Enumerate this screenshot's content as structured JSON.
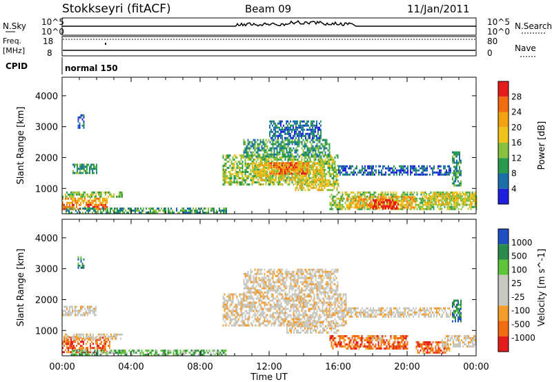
{
  "header": {
    "station": "Stokkseyri (fitACF)",
    "beam": "Beam 09",
    "date": "11/Jan/2011"
  },
  "labels": {
    "nsky": "N.Sky",
    "nsearch": "N.Search",
    "freq_line1": "Freq.",
    "freq_line2": "[MHz]",
    "nave": "Nave",
    "cpid": "CPID",
    "cpid_value": "normal 150",
    "nsky_top": "10^5",
    "nsky_bottom": "10^0",
    "nsearch_top": "10^5",
    "nsearch_bottom": "10^0",
    "freq_top": "18",
    "freq_bottom": "8",
    "nave_top": "80",
    "nave_bottom": "0"
  },
  "colors": {
    "power": [
      "#1f1fe0",
      "#1b6fa8",
      "#2a9a4e",
      "#88c040",
      "#f0c21c",
      "#f3a20f",
      "#f26b13",
      "#e51c1c"
    ],
    "velocity": [
      "#e51c1c",
      "#f26b13",
      "#f59d2a",
      "#c8c8c0",
      "#c8c8c0",
      "#5ec43a",
      "#2a8a4e",
      "#1f4fc0"
    ]
  },
  "chart_data": [
    {
      "type": "heatmap",
      "title": "",
      "xlabel": "",
      "ylabel": "Slant Range [km]",
      "xlim": [
        0,
        24
      ],
      "ylim": [
        180,
        4600
      ],
      "x_ticks": [
        "00:00",
        "04:00",
        "08:00",
        "12:00",
        "16:00",
        "20:00",
        "00:00"
      ],
      "y_ticks": [
        1000,
        2000,
        3000,
        4000
      ],
      "colorbar": {
        "label": "Power [dB]",
        "ticks": [
          "4",
          "8",
          "12",
          "16",
          "20",
          "24",
          "28"
        ]
      },
      "regions": [
        {
          "t": [
            0.0,
            2.6
          ],
          "r": [
            300,
            500
          ],
          "level": 6
        },
        {
          "t": [
            0.0,
            2.6
          ],
          "r": [
            500,
            700
          ],
          "level": 5
        },
        {
          "t": [
            0.0,
            3.5
          ],
          "r": [
            700,
            900
          ],
          "level": 3
        },
        {
          "t": [
            0.2,
            9.5
          ],
          "r": [
            220,
            380
          ],
          "level": 2
        },
        {
          "t": [
            0.9,
            1.3
          ],
          "r": [
            2950,
            3400
          ],
          "level": 1
        },
        {
          "t": [
            0.6,
            2.0
          ],
          "r": [
            1500,
            1800
          ],
          "level": 2
        },
        {
          "t": [
            9.3,
            16.0
          ],
          "r": [
            1150,
            2100
          ],
          "level": 3
        },
        {
          "t": [
            11.0,
            15.2
          ],
          "r": [
            1300,
            1850
          ],
          "level": 4
        },
        {
          "t": [
            12.0,
            14.3
          ],
          "r": [
            1500,
            1850
          ],
          "level": 6
        },
        {
          "t": [
            13.5,
            16.0
          ],
          "r": [
            950,
            1250
          ],
          "level": 4
        },
        {
          "t": [
            10.5,
            15.5
          ],
          "r": [
            2000,
            2600
          ],
          "level": 2
        },
        {
          "t": [
            16.0,
            22.5
          ],
          "r": [
            1450,
            1750
          ],
          "level": 1
        },
        {
          "t": [
            15.5,
            24.0
          ],
          "r": [
            350,
            900
          ],
          "level": 3
        },
        {
          "t": [
            16.5,
            20.5
          ],
          "r": [
            400,
            750
          ],
          "level": 5
        },
        {
          "t": [
            18.0,
            19.5
          ],
          "r": [
            350,
            650
          ],
          "level": 7
        },
        {
          "t": [
            21.0,
            24.0
          ],
          "r": [
            500,
            850
          ],
          "level": 4
        },
        {
          "t": [
            22.6,
            23.1
          ],
          "r": [
            1100,
            2200
          ],
          "level": 2
        },
        {
          "t": [
            12.0,
            15.0
          ],
          "r": [
            2600,
            3200
          ],
          "level": 1
        }
      ]
    },
    {
      "type": "heatmap",
      "title": "",
      "xlabel": "Time UT",
      "ylabel": "Slant Range [km]",
      "xlim": [
        0,
        24
      ],
      "ylim": [
        180,
        4600
      ],
      "x_ticks": [
        "00:00",
        "04:00",
        "08:00",
        "12:00",
        "16:00",
        "20:00",
        "00:00"
      ],
      "y_ticks": [
        1000,
        2000,
        3000,
        4000
      ],
      "colorbar": {
        "label": "Velocity [m s^-1]",
        "ticks": [
          "1000",
          "500",
          "100",
          "25",
          "-25",
          "-100",
          "-500",
          "-1000"
        ]
      },
      "regions": [
        {
          "t": [
            0.0,
            2.8
          ],
          "r": [
            300,
            800
          ],
          "level": 1
        },
        {
          "t": [
            0.0,
            3.5
          ],
          "r": [
            700,
            900
          ],
          "level": 3
        },
        {
          "t": [
            0.5,
            9.5
          ],
          "r": [
            220,
            380
          ],
          "level": 5
        },
        {
          "t": [
            0.0,
            2.0
          ],
          "r": [
            1500,
            1800
          ],
          "level": 3
        },
        {
          "t": [
            0.9,
            1.3
          ],
          "r": [
            3000,
            3400
          ],
          "level": 6
        },
        {
          "t": [
            9.3,
            16.5
          ],
          "r": [
            1150,
            2200
          ],
          "level": 3
        },
        {
          "t": [
            13.0,
            16.0
          ],
          "r": [
            950,
            1300
          ],
          "level": 3
        },
        {
          "t": [
            10.5,
            16.0
          ],
          "r": [
            2200,
            3000
          ],
          "level": 3
        },
        {
          "t": [
            16.0,
            22.5
          ],
          "r": [
            1450,
            1750
          ],
          "level": 3
        },
        {
          "t": [
            15.5,
            20.0
          ],
          "r": [
            400,
            850
          ],
          "level": 1
        },
        {
          "t": [
            17.5,
            18.5
          ],
          "r": [
            700,
            850
          ],
          "level": 2
        },
        {
          "t": [
            20.5,
            22.5
          ],
          "r": [
            300,
            650
          ],
          "level": 1
        },
        {
          "t": [
            22.0,
            24.0
          ],
          "r": [
            500,
            850
          ],
          "level": 3
        },
        {
          "t": [
            22.6,
            23.1
          ],
          "r": [
            1300,
            2000
          ],
          "level": 6
        }
      ]
    }
  ]
}
